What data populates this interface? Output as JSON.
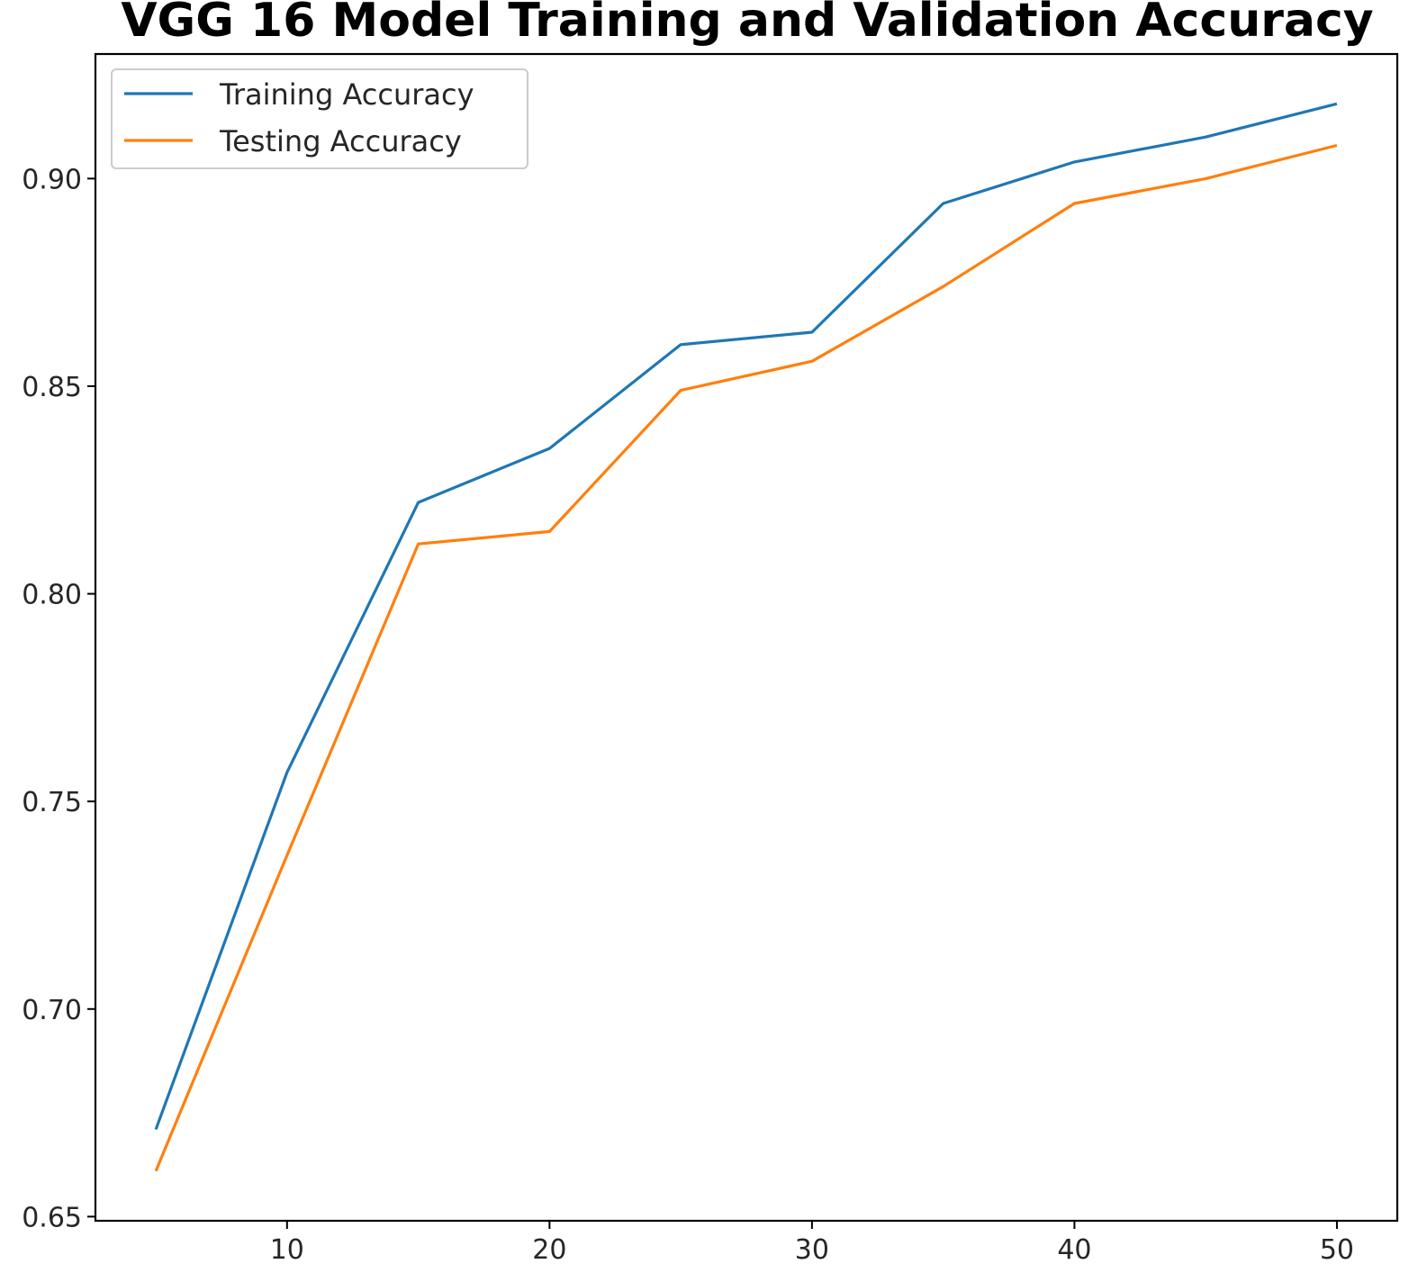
{
  "chart_data": {
    "type": "line",
    "title": "VGG 16 Model Training and Validation Accuracy",
    "xlabel": "",
    "ylabel": "",
    "x": [
      5,
      10,
      15,
      20,
      25,
      30,
      35,
      40,
      45,
      50
    ],
    "series": [
      {
        "name": "Training Accuracy",
        "color": "#1f77b4",
        "values": [
          0.671,
          0.757,
          0.822,
          0.835,
          0.86,
          0.863,
          0.894,
          0.904,
          0.91,
          0.918
        ]
      },
      {
        "name": "Testing Accuracy",
        "color": "#ff7f0e",
        "values": [
          0.661,
          0.737,
          0.812,
          0.815,
          0.849,
          0.856,
          0.874,
          0.894,
          0.9,
          0.908
        ]
      }
    ],
    "xticks": [
      10,
      20,
      30,
      40,
      50
    ],
    "xtick_labels": [
      "10",
      "20",
      "30",
      "40",
      "50"
    ],
    "yticks": [
      0.65,
      0.7,
      0.75,
      0.8,
      0.85,
      0.9
    ],
    "ytick_labels": [
      "0.65",
      "0.70",
      "0.75",
      "0.80",
      "0.85",
      "0.90"
    ],
    "xlim": [
      2.7,
      52.3
    ],
    "ylim": [
      0.649,
      0.93
    ],
    "grid": false,
    "legend_position": "top-left"
  }
}
